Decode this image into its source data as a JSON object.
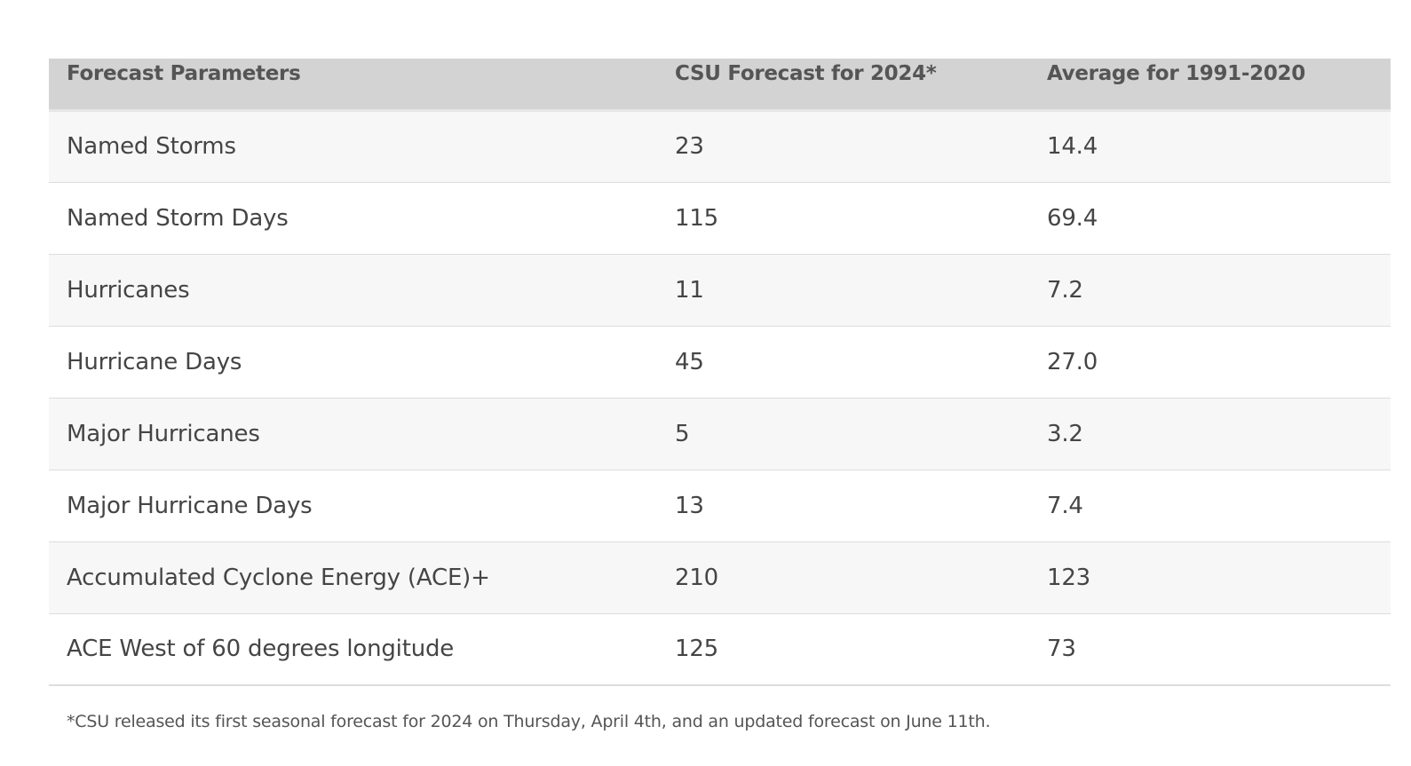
{
  "table": {
    "headers": [
      "Forecast Parameters",
      "CSU Forecast for 2024*",
      "Average for 1991-2020"
    ],
    "rows": [
      {
        "parameter": "Named Storms",
        "forecast": "23",
        "average": "14.4"
      },
      {
        "parameter": "Named Storm Days",
        "forecast": "115",
        "average": "69.4"
      },
      {
        "parameter": "Hurricanes",
        "forecast": "11",
        "average": "7.2"
      },
      {
        "parameter": "Hurricane Days",
        "forecast": "45",
        "average": "27.0"
      },
      {
        "parameter": "Major Hurricanes",
        "forecast": "5",
        "average": "3.2"
      },
      {
        "parameter": "Major Hurricane Days",
        "forecast": "13",
        "average": "7.4"
      },
      {
        "parameter": "Accumulated Cyclone Energy (ACE)+",
        "forecast": "210",
        "average": "123"
      },
      {
        "parameter": "ACE West of 60 degrees longitude",
        "forecast": "125",
        "average": "73"
      }
    ]
  },
  "footnote": "*CSU released its first seasonal forecast for 2024 on Thursday, April 4th, and an updated forecast on June 11th."
}
